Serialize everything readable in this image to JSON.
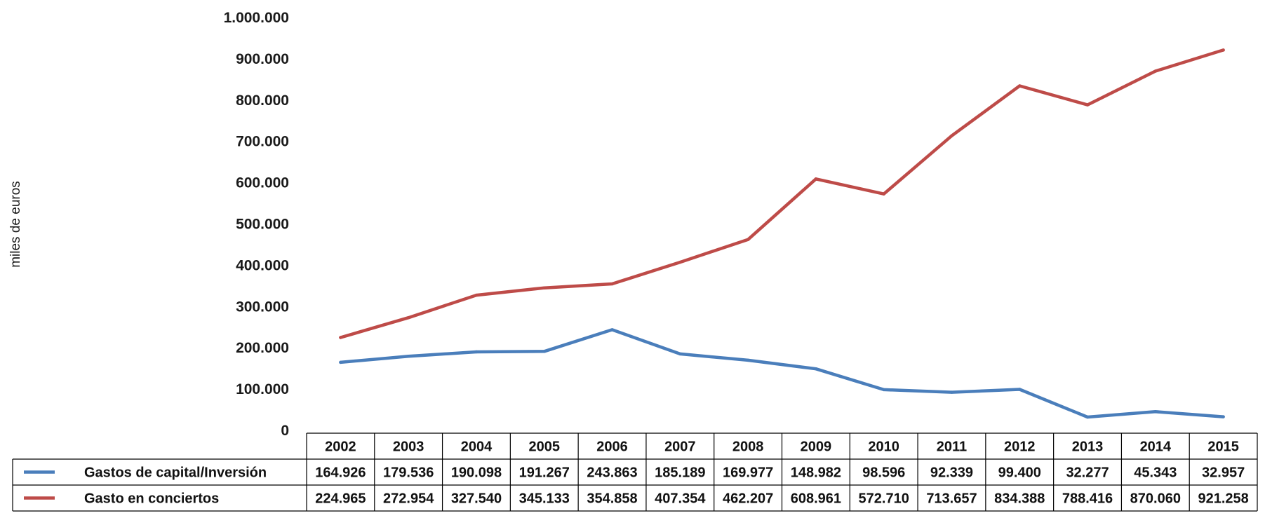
{
  "chart_data": {
    "type": "line",
    "title": "",
    "ylabel": "miles de euros",
    "xlabel": "",
    "ylim": [
      0,
      1000000
    ],
    "y_ticks": [
      0,
      100000,
      200000,
      300000,
      400000,
      500000,
      600000,
      700000,
      800000,
      900000,
      1000000
    ],
    "y_tick_labels": [
      "0",
      "100.000",
      "200.000",
      "300.000",
      "400.000",
      "500.000",
      "600.000",
      "700.000",
      "800.000",
      "900.000",
      "1.000.000"
    ],
    "grid": false,
    "legend_placement": "bottom data table",
    "categories": [
      "2002",
      "2003",
      "2004",
      "2005",
      "2006",
      "2007",
      "2008",
      "2009",
      "2010",
      "2011",
      "2012",
      "2013",
      "2014",
      "2015"
    ],
    "series": [
      {
        "name": "Gastos de capital/Inversión",
        "color": "#4a7ebb",
        "values": [
          164926,
          179536,
          190098,
          191267,
          243863,
          185189,
          169977,
          148982,
          98596,
          92339,
          99400,
          32277,
          45343,
          32957
        ],
        "labels": [
          "164.926",
          "179.536",
          "190.098",
          "191.267",
          "243.863",
          "185.189",
          "169.977",
          "148.982",
          "98.596",
          "92.339",
          "99.400",
          "32.277",
          "45.343",
          "32.957"
        ]
      },
      {
        "name": "Gasto en conciertos",
        "color": "#be4b48",
        "values": [
          224965,
          272954,
          327540,
          345133,
          354858,
          407354,
          462207,
          608961,
          572710,
          713657,
          834388,
          788416,
          870060,
          921258
        ],
        "labels": [
          "224.965",
          "272.954",
          "327.540",
          "345.133",
          "354.858",
          "407.354",
          "462.207",
          "608.961",
          "572.710",
          "713.657",
          "834.388",
          "788.416",
          "870.060",
          "921.258"
        ]
      }
    ]
  }
}
